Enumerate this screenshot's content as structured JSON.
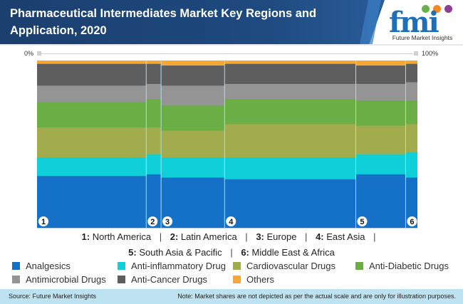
{
  "header": {
    "title": "Pharmaceutical Intermediates Market Key Regions and Application, 2020",
    "logo_text": "fmi",
    "logo_subtitle": "Future Market Insights"
  },
  "axis": {
    "left_label": "0%",
    "right_label": "100%"
  },
  "region_legend": {
    "items": [
      {
        "num": "1:",
        "name": "North America"
      },
      {
        "num": "2:",
        "name": "Latin America"
      },
      {
        "num": "3:",
        "name": "Europe"
      },
      {
        "num": "4:",
        "name": "East Asia"
      },
      {
        "num": "5:",
        "name": "South Asia & Pacific"
      },
      {
        "num": "6:",
        "name": "Middle East & Africa"
      }
    ],
    "separator": "|"
  },
  "footer": {
    "source": "Source: Future Market Insights",
    "note": "Note: Market shares are not depicted as per the actual scale and are only for illustration purposes."
  },
  "chart_data": {
    "type": "marimekko",
    "title": "Pharmaceutical Intermediates Market Key Regions and Application, 2020",
    "x_range": [
      0,
      100
    ],
    "y_range": [
      0,
      100
    ],
    "x_unit": "%",
    "y_unit": "%",
    "grid": false,
    "legend_position": "bottom",
    "categories": [
      {
        "label": "1",
        "name": "North America",
        "width": 28.7
      },
      {
        "label": "2",
        "name": "Latin America",
        "width": 3.9
      },
      {
        "label": "3",
        "name": "Europe",
        "width": 16.7
      },
      {
        "label": "4",
        "name": "East Asia",
        "width": 34.5
      },
      {
        "label": "5",
        "name": "South Asia & Pacific",
        "width": 13.1
      },
      {
        "label": "6",
        "name": "Middle East & Africa",
        "width": 3.1
      }
    ],
    "series": [
      {
        "name": "Analgesics",
        "color": "#1570c8",
        "values": [
          31,
          32,
          30,
          29,
          32,
          30
        ]
      },
      {
        "name": "Anti-inflammatory Drug",
        "color": "#0fd0d8",
        "values": [
          11,
          12,
          12,
          13,
          12,
          15
        ]
      },
      {
        "name": "Cardiovascular Drugs",
        "color": "#a3ac4c",
        "values": [
          18,
          16,
          16,
          20,
          17,
          17
        ]
      },
      {
        "name": "Anti-Diabetic Drugs",
        "color": "#6aae45",
        "values": [
          15,
          17,
          15,
          15,
          15,
          14
        ]
      },
      {
        "name": "Antimicrobial Drugs",
        "color": "#949494",
        "values": [
          10,
          9,
          12,
          9,
          10,
          11
        ]
      },
      {
        "name": "Anti-Cancer Drugs",
        "color": "#5e5e5e",
        "values": [
          13,
          12,
          12,
          12,
          11,
          11
        ]
      },
      {
        "name": "Others",
        "color": "#f6a734",
        "values": [
          2,
          2,
          3,
          2,
          3,
          2
        ]
      }
    ],
    "legend_order": [
      "Analgesics",
      "Anti-inflammatory Drug",
      "Cardiovascular Drugs",
      "Anti-Diabetic Drugs",
      "Antimicrobial Drugs",
      "Anti-Cancer Drugs",
      "Others"
    ]
  }
}
